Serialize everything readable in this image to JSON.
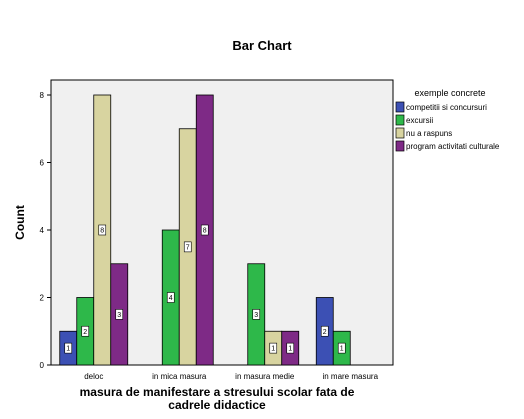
{
  "chart_data": {
    "type": "bar",
    "title": "Bar Chart",
    "xlabel_lines": [
      "masura de manifestare a stresului scolar fata de",
      "cadrele didactice"
    ],
    "ylabel": "Count",
    "ylim": [
      0,
      8
    ],
    "yticks": [
      0,
      2,
      4,
      6,
      8
    ],
    "grid": false,
    "legend_title": "exemple concrete",
    "legend_placement": "right",
    "categories": [
      "deloc",
      "in mica masura",
      "in masura medie",
      "in mare masura"
    ],
    "series": [
      {
        "name": "competitii si concursuri",
        "color": "#3c50b4",
        "values": [
          1,
          null,
          null,
          2
        ],
        "labels": [
          "1",
          "",
          "",
          "2"
        ]
      },
      {
        "name": "excursii",
        "color": "#2eb84a",
        "values": [
          2,
          4,
          3,
          1
        ],
        "labels": [
          "2",
          "4",
          "3",
          "1"
        ]
      },
      {
        "name": "nu a raspuns",
        "color": "#d8d4a0",
        "values": [
          8,
          7,
          1,
          null
        ],
        "labels": [
          "8",
          "7",
          "1",
          ""
        ]
      },
      {
        "name": "program activitati culturale",
        "color": "#7e2a86",
        "values": [
          3,
          8,
          1,
          null
        ],
        "labels": [
          "3",
          "8",
          "1",
          ""
        ]
      }
    ]
  }
}
